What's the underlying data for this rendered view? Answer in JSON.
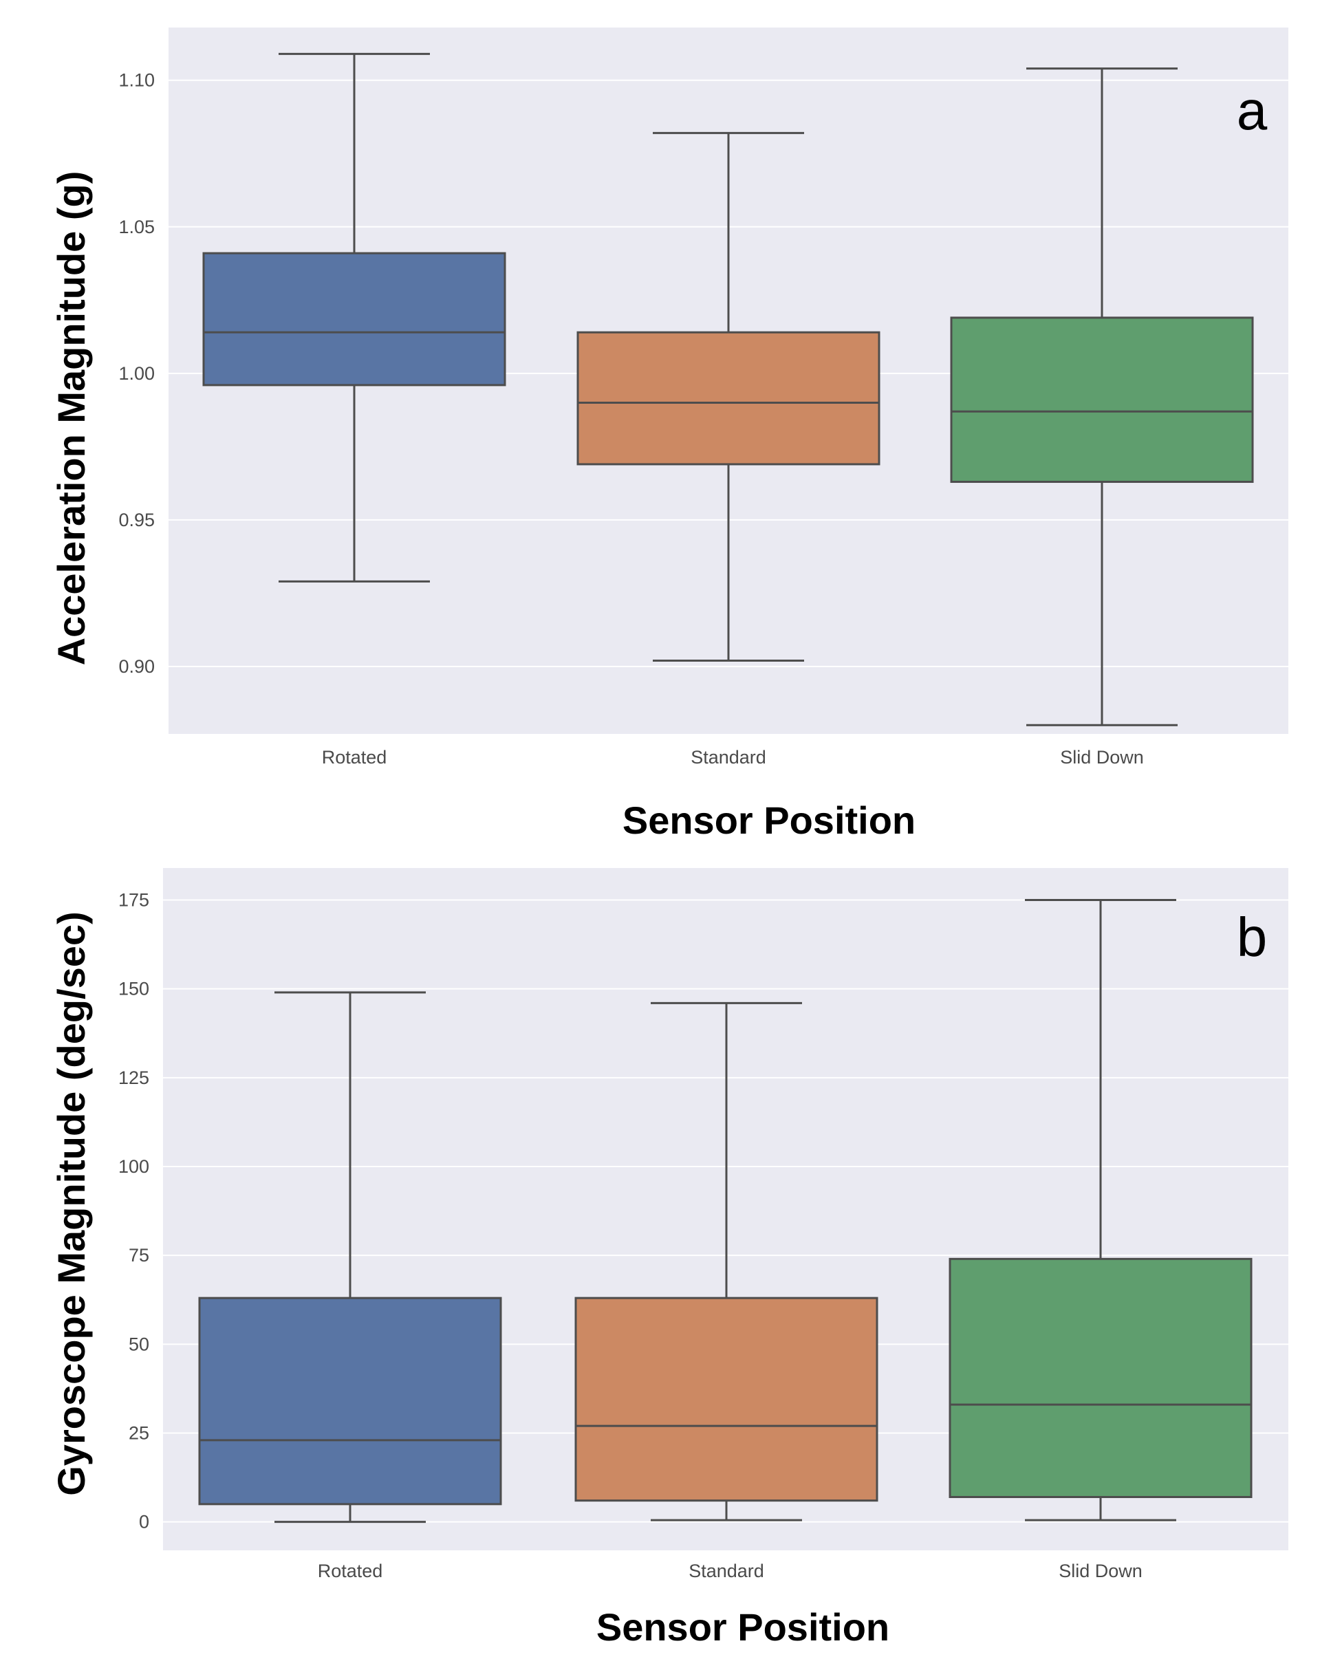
{
  "figure": {
    "background_color": "#ffffff",
    "plot_background_color": "#eaeaf2",
    "grid_color": "#ffffff",
    "line_color": "#4d4d4d"
  },
  "chart_data": [
    {
      "type": "box",
      "panel_label": "a",
      "xlabel": "Sensor Position",
      "ylabel": "Acceleration Magnitude (g)",
      "ylim": [
        0.877,
        1.118
      ],
      "yticks": [
        0.9,
        0.95,
        1.0,
        1.05,
        1.1
      ],
      "ytick_labels": [
        "0.90",
        "0.95",
        "1.00",
        "1.05",
        "1.10"
      ],
      "grid": true,
      "categories": [
        "Rotated",
        "Standard",
        "Slid Down"
      ],
      "colors": [
        "#5975a4",
        "#cc8963",
        "#5f9e6e"
      ],
      "boxes": [
        {
          "category": "Rotated",
          "whisker_low": 0.929,
          "q1": 0.996,
          "median": 1.014,
          "q3": 1.041,
          "whisker_high": 1.109
        },
        {
          "category": "Standard",
          "whisker_low": 0.902,
          "q1": 0.969,
          "median": 0.99,
          "q3": 1.014,
          "whisker_high": 1.082
        },
        {
          "category": "Slid Down",
          "whisker_low": 0.88,
          "q1": 0.963,
          "median": 0.987,
          "q3": 1.019,
          "whisker_high": 1.104
        }
      ]
    },
    {
      "type": "box",
      "panel_label": "b",
      "xlabel": "Sensor Position",
      "ylabel": "Gyroscope Magnitude (deg/sec)",
      "ylim": [
        -8,
        184
      ],
      "yticks": [
        0,
        25,
        50,
        75,
        100,
        125,
        150,
        175
      ],
      "ytick_labels": [
        "0",
        "25",
        "50",
        "75",
        "100",
        "125",
        "150",
        "175"
      ],
      "grid": true,
      "categories": [
        "Rotated",
        "Standard",
        "Slid Down"
      ],
      "colors": [
        "#5975a4",
        "#cc8963",
        "#5f9e6e"
      ],
      "boxes": [
        {
          "category": "Rotated",
          "whisker_low": 0,
          "q1": 5,
          "median": 23,
          "q3": 63,
          "whisker_high": 149
        },
        {
          "category": "Standard",
          "whisker_low": 0.5,
          "q1": 6,
          "median": 27,
          "q3": 63,
          "whisker_high": 146
        },
        {
          "category": "Slid Down",
          "whisker_low": 0.5,
          "q1": 7,
          "median": 33,
          "q3": 74,
          "whisker_high": 175
        }
      ]
    }
  ]
}
